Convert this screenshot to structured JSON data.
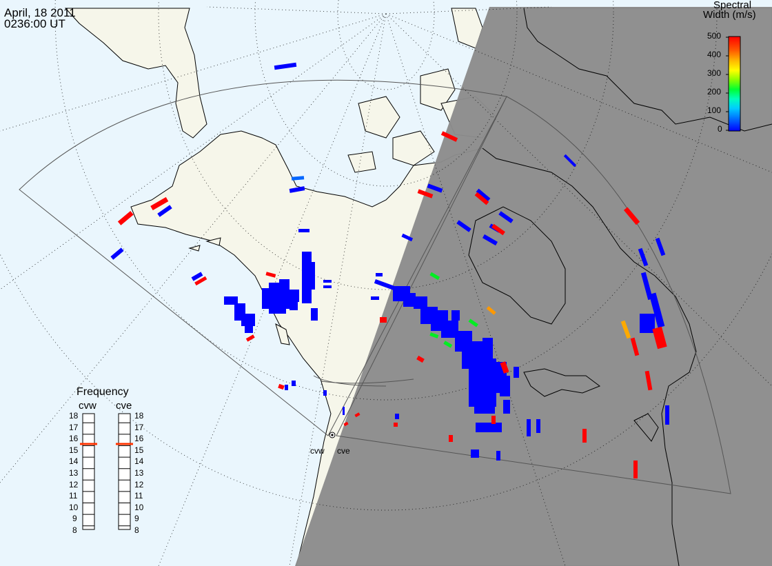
{
  "header": {
    "date": "April, 18 2011",
    "time": "0236:00 UT"
  },
  "colorbar": {
    "title_line1": "Spectral",
    "title_line2": "Width (m/s)",
    "min": 0,
    "max": 500,
    "ticks": [
      "0",
      "100",
      "200",
      "300",
      "400",
      "500"
    ],
    "colors": [
      "#0000ff",
      "#0055ff",
      "#00bbff",
      "#00ffbb",
      "#00ff44",
      "#66ff00",
      "#ccff00",
      "#ffdd00",
      "#ff8800",
      "#ff3300",
      "#ff0000"
    ]
  },
  "frequency_panel": {
    "title": "Frequency",
    "radars": [
      "cvw",
      "cve"
    ],
    "levels": [
      "18",
      "17",
      "16",
      "15",
      "14",
      "13",
      "12",
      "11",
      "10",
      "9",
      "8"
    ],
    "current_mhz": [
      15.5,
      15.5
    ],
    "marker_color": "#ff3300"
  },
  "radar_labels": [
    "cvw",
    "cve"
  ],
  "colors": {
    "ocean": "#eaf6fd",
    "land": "#f6f6ea",
    "night": "#8c8c8c",
    "low_width": "#0000ff",
    "high_width": "#ff0000"
  },
  "spectral_width_note_values": [
    30,
    480,
    50,
    260,
    320
  ]
}
